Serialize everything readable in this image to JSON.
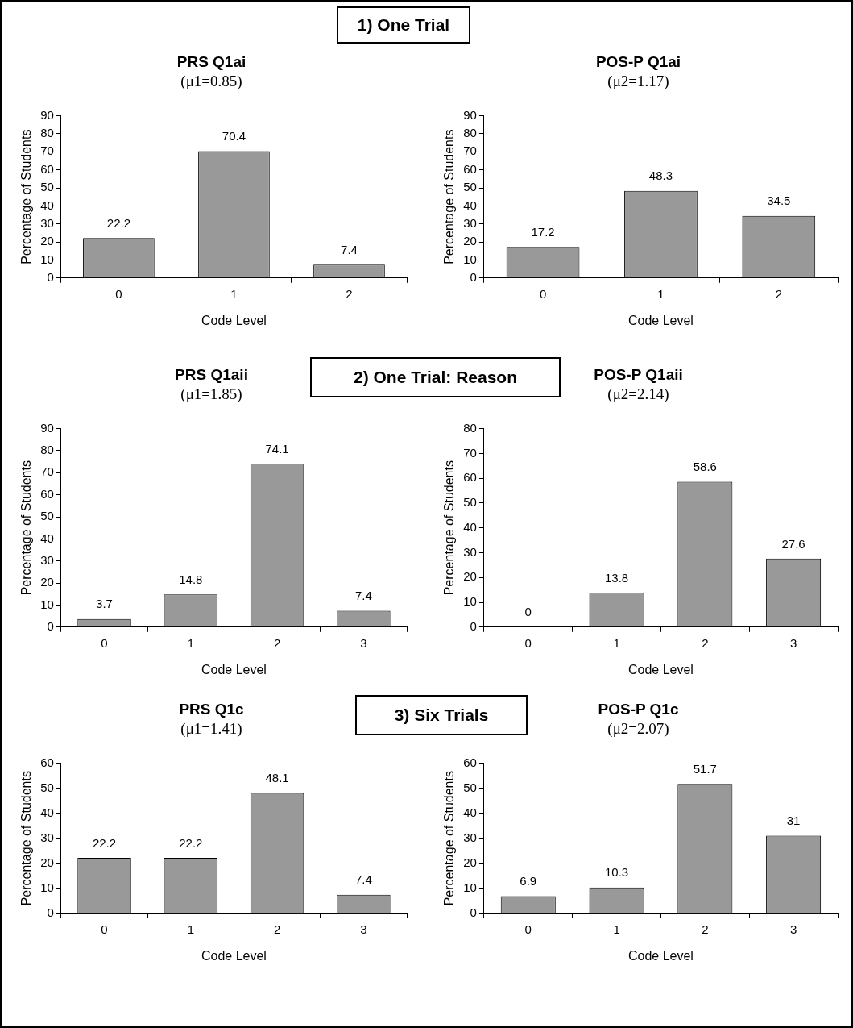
{
  "chart_data": [
    {
      "type": "bar",
      "title": "PRS Q1ai",
      "subtitle": "(μ1=0.85)",
      "xlabel": "Code Level",
      "ylabel": "Percentage of Students",
      "categories": [
        "0",
        "1",
        "2"
      ],
      "values": [
        22.2,
        70.4,
        7.4
      ],
      "color": "#999999",
      "ylim": [
        0,
        90
      ],
      "yticks": [
        0,
        10,
        20,
        30,
        40,
        50,
        60,
        70,
        80,
        90
      ],
      "data_labels": true,
      "annotations": [
        "1) One Trial"
      ]
    },
    {
      "type": "bar",
      "title": "POS-P Q1ai",
      "subtitle": "(μ2=1.17)",
      "xlabel": "Code Level",
      "ylabel": "Percentage of Students",
      "categories": [
        "0",
        "1",
        "2"
      ],
      "values": [
        17.2,
        48.3,
        34.5
      ],
      "color": "#999999",
      "ylim": [
        0,
        90
      ],
      "yticks": [
        0,
        10,
        20,
        30,
        40,
        50,
        60,
        70,
        80,
        90
      ],
      "data_labels": true
    },
    {
      "type": "bar",
      "title": "PRS Q1aii",
      "subtitle": "(μ1=1.85)",
      "xlabel": "Code Level",
      "ylabel": "Percentage of Students",
      "categories": [
        "0",
        "1",
        "2",
        "3"
      ],
      "values": [
        3.7,
        14.8,
        74.1,
        7.4
      ],
      "color": "#999999",
      "ylim": [
        0,
        90
      ],
      "yticks": [
        0,
        10,
        20,
        30,
        40,
        50,
        60,
        70,
        80,
        90
      ],
      "data_labels": true,
      "annotations": [
        "2) One Trial: Reason"
      ]
    },
    {
      "type": "bar",
      "title": "POS-P Q1aii",
      "subtitle": "(μ2=2.14)",
      "xlabel": "Code Level",
      "ylabel": "Percentage of Students",
      "categories": [
        "0",
        "1",
        "2",
        "3"
      ],
      "values": [
        0,
        13.8,
        58.6,
        27.6
      ],
      "color": "#999999",
      "ylim": [
        0,
        80
      ],
      "yticks": [
        0,
        10,
        20,
        30,
        40,
        50,
        60,
        70,
        80
      ],
      "data_labels": true
    },
    {
      "type": "bar",
      "title": "PRS Q1c",
      "subtitle": "(μ1=1.41)",
      "xlabel": "Code Level",
      "ylabel": "Percentage of Students",
      "categories": [
        "0",
        "1",
        "2",
        "3"
      ],
      "values": [
        22.2,
        22.2,
        48.1,
        7.4
      ],
      "color": "#999999",
      "ylim": [
        0,
        60
      ],
      "yticks": [
        0,
        10,
        20,
        30,
        40,
        50,
        60
      ],
      "data_labels": true,
      "annotations": [
        "3) Six Trials"
      ]
    },
    {
      "type": "bar",
      "title": "POS-P Q1c",
      "subtitle": "(μ2=2.07)",
      "xlabel": "Code Level",
      "ylabel": "Percentage of Students",
      "categories": [
        "0",
        "1",
        "2",
        "3"
      ],
      "values": [
        6.9,
        10.3,
        51.7,
        31
      ],
      "color": "#999999",
      "ylim": [
        0,
        60
      ],
      "yticks": [
        0,
        10,
        20,
        30,
        40,
        50,
        60
      ],
      "data_labels": true
    }
  ]
}
